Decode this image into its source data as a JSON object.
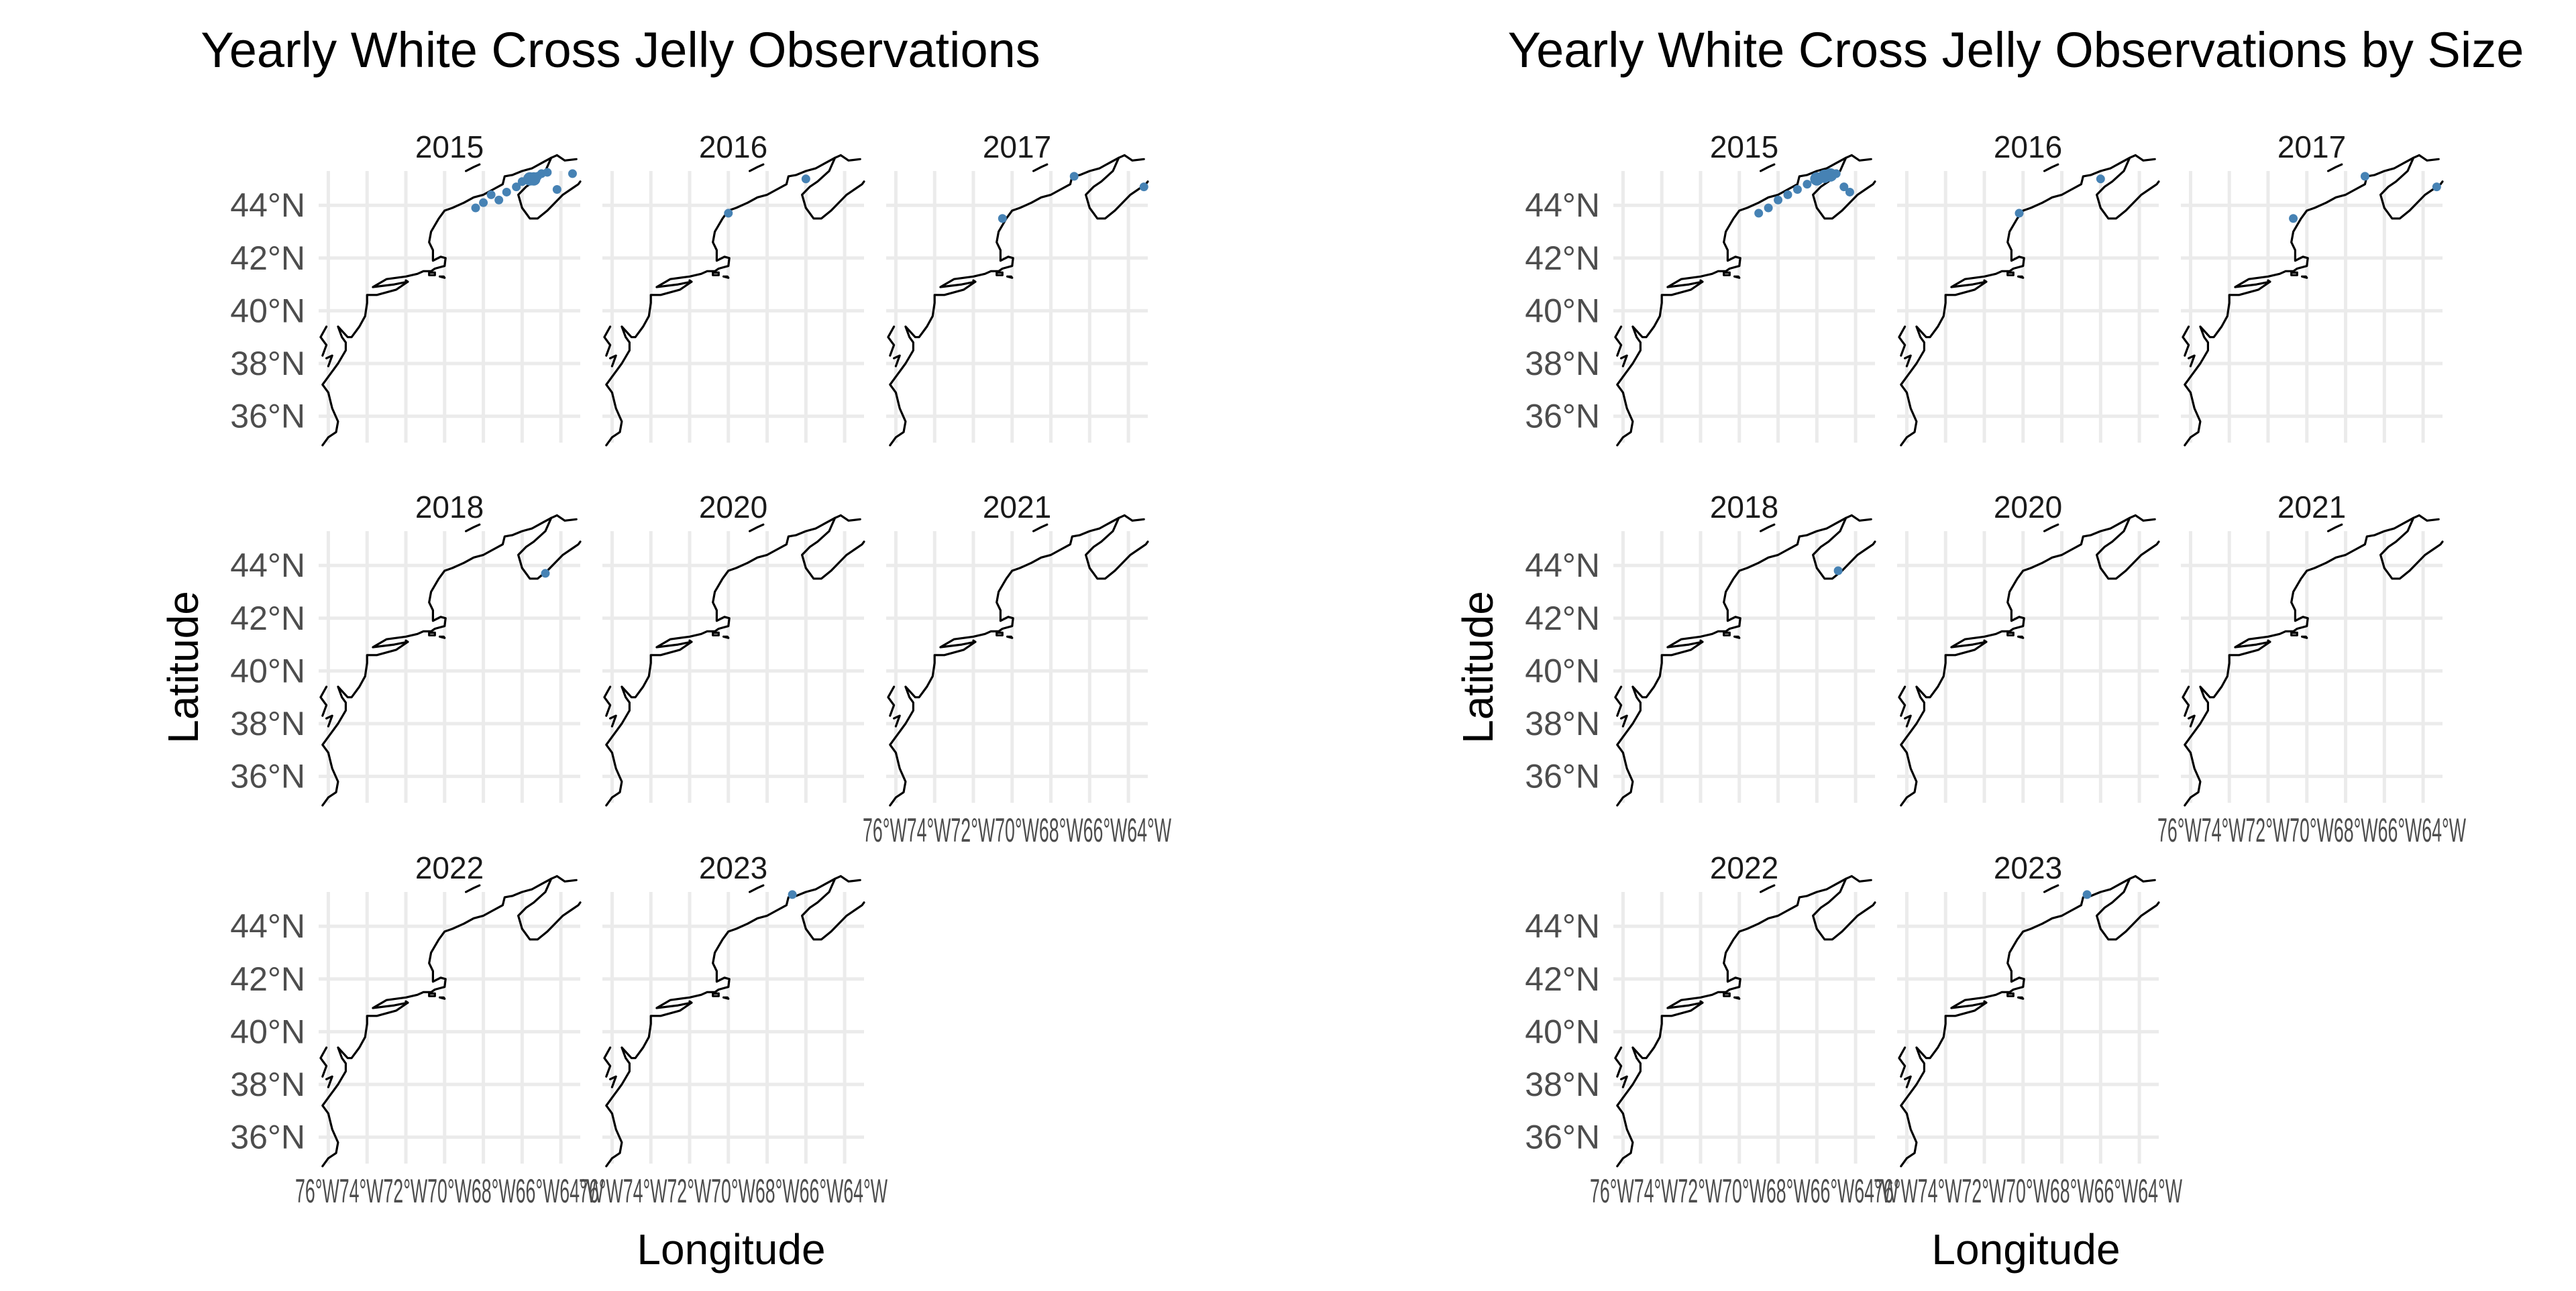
{
  "colors": {
    "point": "#4682b4",
    "grid": "#ebebeb",
    "coast": "#000000"
  },
  "chart_data": [
    {
      "type": "map",
      "title": "Yearly White Cross Jelly Observations",
      "xlabel": "Longitude",
      "ylabel": "Latitude",
      "xlim": [
        -76.5,
        -63
      ],
      "ylim": [
        35,
        45.3
      ],
      "y_ticks": [
        "36°N",
        "38°N",
        "40°N",
        "42°N",
        "44°N"
      ],
      "y_tick_values": [
        36,
        38,
        40,
        42,
        44
      ],
      "x_tick_label_run": "76°W74°W72°W70°W68°W66°W64°W",
      "x_tick_values": [
        -76,
        -74,
        -72,
        -70,
        -68,
        -66,
        -64
      ],
      "grid": true,
      "facets": [
        {
          "label": "2015",
          "points": [
            [
              -68.4,
              43.9,
              1
            ],
            [
              -68.0,
              44.1,
              1
            ],
            [
              -67.6,
              44.4,
              1
            ],
            [
              -67.2,
              44.2,
              1
            ],
            [
              -66.8,
              44.5,
              1
            ],
            [
              -66.3,
              44.7,
              1
            ],
            [
              -66.0,
              44.9,
              1
            ],
            [
              -65.6,
              45.0,
              2
            ],
            [
              -65.4,
              45.0,
              2
            ],
            [
              -65.2,
              45.1,
              1
            ],
            [
              -65.0,
              45.2,
              1
            ],
            [
              -64.7,
              45.25,
              1
            ],
            [
              -64.2,
              44.6,
              1
            ],
            [
              -63.4,
              45.2,
              1
            ]
          ]
        },
        {
          "label": "2016",
          "points": [
            [
              -70.0,
              43.7,
              1
            ],
            [
              -66.0,
              45.0,
              1
            ]
          ]
        },
        {
          "label": "2017",
          "points": [
            [
              -70.5,
              43.5,
              1
            ],
            [
              -66.8,
              45.1,
              1
            ],
            [
              -63.2,
              44.7,
              1
            ]
          ]
        },
        {
          "label": "2018",
          "points": [
            [
              -64.8,
              43.7,
              1
            ]
          ]
        },
        {
          "label": "2020",
          "points": []
        },
        {
          "label": "2021",
          "points": []
        },
        {
          "label": "2022",
          "points": []
        },
        {
          "label": "2023",
          "points": [
            [
              -66.7,
              45.2,
              1
            ]
          ]
        }
      ]
    },
    {
      "type": "map",
      "title": "Yearly White Cross Jelly Observations by Size",
      "xlabel": "Longitude",
      "ylabel": "Latitude",
      "xlim": [
        -76.5,
        -63
      ],
      "ylim": [
        35,
        45.3
      ],
      "y_ticks": [
        "36°N",
        "38°N",
        "40°N",
        "42°N",
        "44°N"
      ],
      "y_tick_values": [
        36,
        38,
        40,
        42,
        44
      ],
      "x_tick_label_run": "76°W74°W72°W70°W68°W66°W64°W",
      "x_tick_values": [
        -76,
        -74,
        -72,
        -70,
        -68,
        -66,
        -64
      ],
      "grid": true,
      "facets": [
        {
          "label": "2015",
          "points": [
            [
              -69.0,
              43.7,
              1
            ],
            [
              -68.5,
              43.9,
              1
            ],
            [
              -68.0,
              44.2,
              1
            ],
            [
              -67.5,
              44.4,
              1
            ],
            [
              -67.0,
              44.6,
              1
            ],
            [
              -66.5,
              44.8,
              1
            ],
            [
              -66.0,
              45.0,
              2
            ],
            [
              -65.6,
              45.1,
              2
            ],
            [
              -65.3,
              45.15,
              2
            ],
            [
              -65.0,
              45.2,
              1
            ],
            [
              -64.6,
              44.7,
              1
            ],
            [
              -64.3,
              44.5,
              1
            ]
          ]
        },
        {
          "label": "2016",
          "points": [
            [
              -70.2,
              43.7,
              1
            ],
            [
              -66.0,
              45.0,
              1
            ]
          ]
        },
        {
          "label": "2017",
          "points": [
            [
              -70.7,
              43.5,
              1
            ],
            [
              -67.0,
              45.1,
              1
            ],
            [
              -63.3,
              44.7,
              1
            ]
          ]
        },
        {
          "label": "2018",
          "points": [
            [
              -64.9,
              43.8,
              1
            ]
          ]
        },
        {
          "label": "2020",
          "points": []
        },
        {
          "label": "2021",
          "points": []
        },
        {
          "label": "2022",
          "points": []
        },
        {
          "label": "2023",
          "points": [
            [
              -66.7,
              45.2,
              1
            ]
          ]
        }
      ]
    }
  ]
}
